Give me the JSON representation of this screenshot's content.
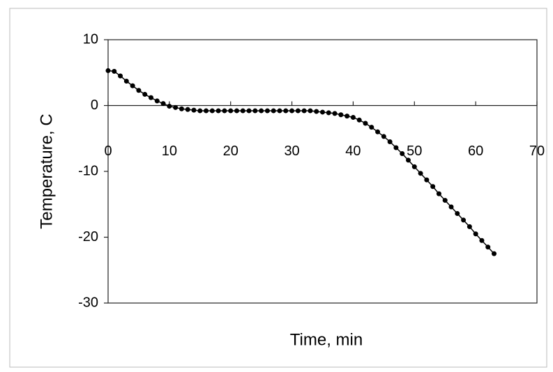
{
  "chart_data": {
    "type": "line",
    "xlabel": "Time, min",
    "ylabel": "Temperature, C",
    "x": [
      0,
      1,
      2,
      3,
      4,
      5,
      6,
      7,
      8,
      9,
      10,
      11,
      12,
      13,
      14,
      15,
      16,
      17,
      18,
      19,
      20,
      21,
      22,
      23,
      24,
      25,
      26,
      27,
      28,
      29,
      30,
      31,
      32,
      33,
      34,
      35,
      36,
      37,
      38,
      39,
      40,
      41,
      42,
      43,
      44,
      45,
      46,
      47,
      48,
      49,
      50,
      51,
      52,
      53,
      54,
      55,
      56,
      57,
      58,
      59,
      60,
      61,
      62,
      63
    ],
    "values": [
      5.3,
      5.2,
      4.5,
      3.7,
      3.0,
      2.3,
      1.7,
      1.2,
      0.7,
      0.3,
      -0.1,
      -0.3,
      -0.5,
      -0.6,
      -0.7,
      -0.8,
      -0.8,
      -0.8,
      -0.8,
      -0.8,
      -0.8,
      -0.8,
      -0.8,
      -0.8,
      -0.8,
      -0.8,
      -0.8,
      -0.8,
      -0.8,
      -0.8,
      -0.8,
      -0.8,
      -0.8,
      -0.8,
      -0.9,
      -1.0,
      -1.1,
      -1.2,
      -1.4,
      -1.6,
      -1.8,
      -2.2,
      -2.7,
      -3.3,
      -4.0,
      -4.7,
      -5.5,
      -6.4,
      -7.3,
      -8.3,
      -9.3,
      -10.3,
      -11.3,
      -12.3,
      -13.4,
      -14.4,
      -15.4,
      -16.4,
      -17.4,
      -18.4,
      -19.5,
      -20.5,
      -21.5,
      -22.5
    ],
    "color": "#000000",
    "xlim": [
      0,
      70
    ],
    "xticks": [
      0,
      10,
      20,
      30,
      40,
      50,
      60,
      70
    ],
    "ylim": [
      -30,
      10
    ],
    "yticks": [
      10,
      0,
      -10,
      -20,
      -30
    ],
    "grid": false
  }
}
